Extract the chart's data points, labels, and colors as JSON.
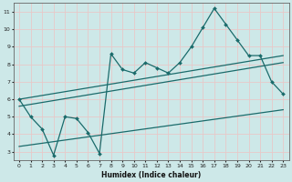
{
  "xlabel": "Humidex (Indice chaleur)",
  "xlim": [
    -0.5,
    23.5
  ],
  "ylim": [
    2.5,
    11.5
  ],
  "xticks": [
    0,
    1,
    2,
    3,
    4,
    5,
    6,
    7,
    8,
    9,
    10,
    11,
    12,
    13,
    14,
    15,
    16,
    17,
    18,
    19,
    20,
    21,
    22,
    23
  ],
  "yticks": [
    3,
    4,
    5,
    6,
    7,
    8,
    9,
    10,
    11
  ],
  "bg_color": "#cde8e8",
  "line_color": "#1a6b6b",
  "grid_color": "#b8d8d8",
  "main_x": [
    0,
    1,
    2,
    3,
    4,
    5,
    6,
    7,
    8,
    9,
    10,
    11,
    12,
    13,
    14,
    15,
    16,
    17,
    18,
    19,
    20,
    21,
    22,
    23
  ],
  "main_y": [
    6.0,
    5.0,
    4.3,
    2.8,
    5.0,
    4.9,
    4.1,
    2.9,
    8.6,
    7.7,
    7.5,
    8.1,
    7.8,
    7.5,
    8.1,
    9.0,
    10.1,
    11.2,
    10.3,
    9.4,
    8.5,
    8.5,
    7.0,
    6.3
  ],
  "line1_x": [
    0,
    23
  ],
  "line1_y": [
    6.0,
    8.5
  ],
  "line2_x": [
    0,
    23
  ],
  "line2_y": [
    5.6,
    8.1
  ],
  "line3_x": [
    0,
    23
  ],
  "line3_y": [
    3.3,
    5.4
  ]
}
